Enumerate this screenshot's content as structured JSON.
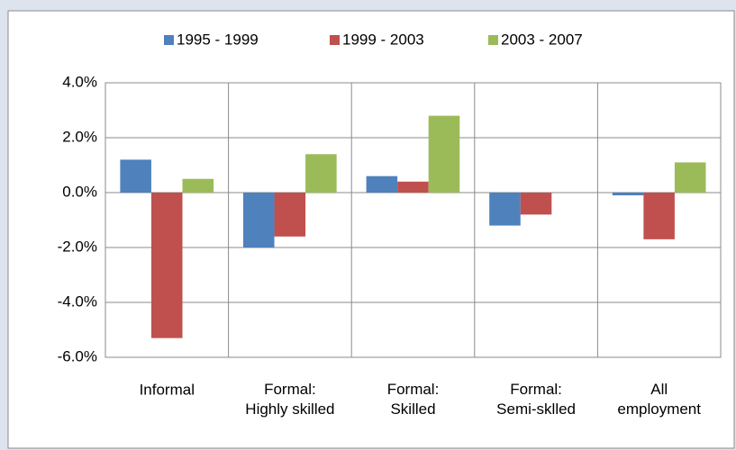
{
  "chart_data": {
    "type": "bar",
    "categories": [
      "Informal",
      "Formal:\nHighly skilled",
      "Formal:\nSkilled",
      "Formal:\nSemi-sklled",
      "All\nemployment"
    ],
    "series": [
      {
        "name": "1995 - 1999",
        "color": "#4f81bd",
        "values": [
          1.2,
          -2.0,
          0.6,
          -1.2,
          -0.1
        ]
      },
      {
        "name": "1999 - 2003",
        "color": "#c0504d",
        "values": [
          -5.3,
          -1.6,
          0.4,
          -0.8,
          -1.7
        ]
      },
      {
        "name": "2003 - 2007",
        "color": "#9bbb59",
        "values": [
          0.5,
          1.4,
          2.8,
          0.0,
          1.1
        ]
      }
    ],
    "ylim": [
      -6,
      4
    ],
    "yticks": [
      {
        "value": -6,
        "label": "-6.0%"
      },
      {
        "value": -4,
        "label": "-4.0%"
      },
      {
        "value": -2,
        "label": "-2.0%"
      },
      {
        "value": 0,
        "label": "0.0%"
      },
      {
        "value": 2,
        "label": "2.0%"
      },
      {
        "value": 4,
        "label": "4.0%"
      }
    ],
    "grid": true,
    "legend": "top"
  }
}
